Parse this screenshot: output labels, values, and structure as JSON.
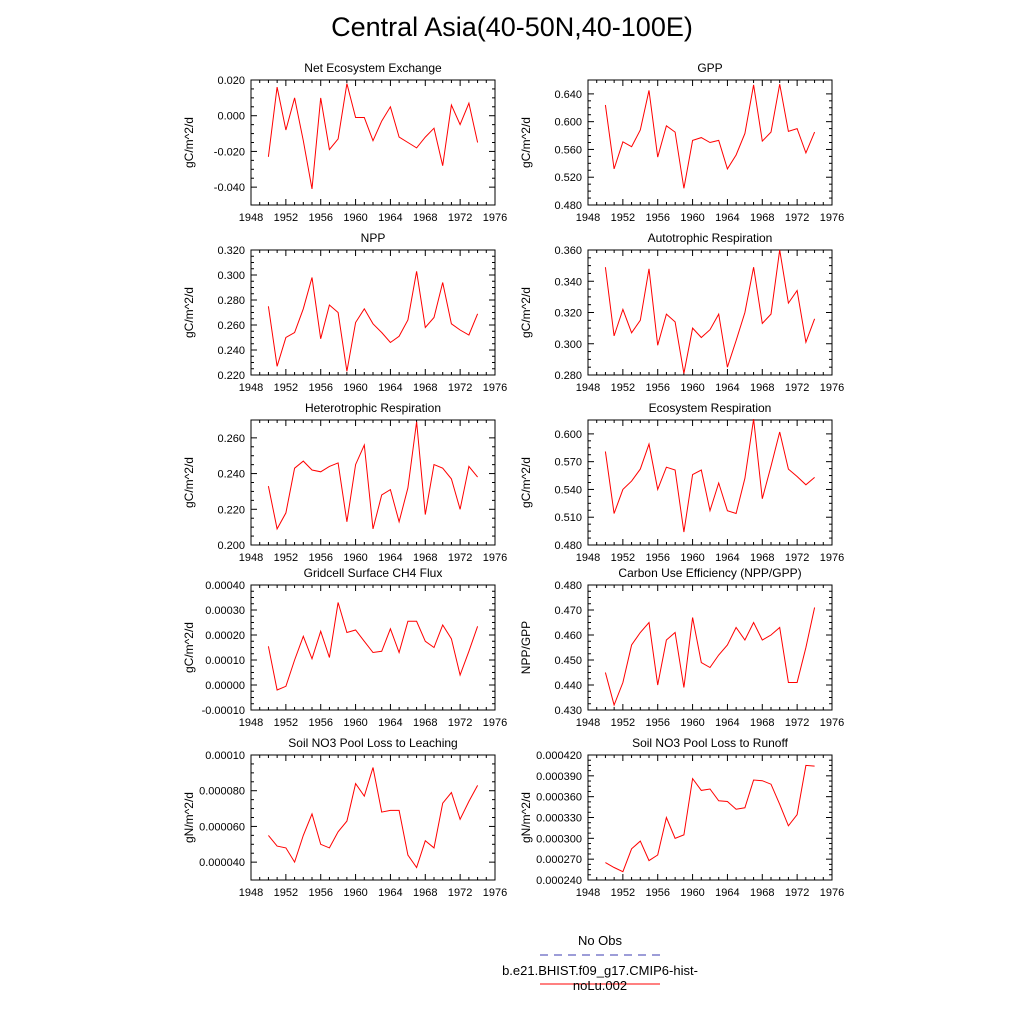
{
  "figure": {
    "title": "Central Asia(40-50N,40-100E)",
    "legend": {
      "obs_label": "No Obs",
      "obs_color": "#3b3bb0",
      "model_label": "b.e21.BHIST.f09_g17.CMIP6-hist-noLu.002",
      "model_color": "#ff0000"
    }
  },
  "chart_data": [
    {
      "type": "line",
      "title": "Net Ecosystem Exchange",
      "ylabel": "gC/m^2/d",
      "xlabel": "",
      "xlim": [
        1948,
        1976
      ],
      "xticks": [
        "1948",
        "1952",
        "1956",
        "1960",
        "1964",
        "1968",
        "1972",
        "1976"
      ],
      "ylim": [
        -0.05,
        0.02
      ],
      "yticks": [
        "-0.040",
        "-0.020",
        "0.000",
        "0.020"
      ],
      "grid": false,
      "series": [
        {
          "color": "#ff0000",
          "x": [
            1950,
            1951,
            1952,
            1953,
            1954,
            1955,
            1956,
            1957,
            1958,
            1959,
            1960,
            1961,
            1962,
            1963,
            1964,
            1965,
            1966,
            1967,
            1968,
            1969,
            1970,
            1971,
            1972,
            1973,
            1974
          ],
          "values": [
            -0.023,
            0.016,
            -0.008,
            0.01,
            -0.014,
            -0.041,
            0.01,
            -0.019,
            -0.013,
            0.018,
            -0.001,
            -0.001,
            -0.014,
            -0.003,
            0.005,
            -0.012,
            -0.015,
            -0.018,
            -0.012,
            -0.007,
            -0.028,
            0.006,
            -0.005,
            0.007,
            -0.015
          ]
        }
      ]
    },
    {
      "type": "line",
      "title": "GPP",
      "ylabel": "gC/m^2/d",
      "xlabel": "",
      "xlim": [
        1948,
        1976
      ],
      "xticks": [
        "1948",
        "1952",
        "1956",
        "1960",
        "1964",
        "1968",
        "1972",
        "1976"
      ],
      "ylim": [
        0.48,
        0.66
      ],
      "yticks": [
        "0.480",
        "0.520",
        "0.560",
        "0.600",
        "0.640"
      ],
      "grid": false,
      "series": [
        {
          "color": "#ff0000",
          "x": [
            1950,
            1951,
            1952,
            1953,
            1954,
            1955,
            1956,
            1957,
            1958,
            1959,
            1960,
            1961,
            1962,
            1963,
            1964,
            1965,
            1966,
            1967,
            1968,
            1969,
            1970,
            1971,
            1972,
            1973,
            1974
          ],
          "values": [
            0.624,
            0.532,
            0.571,
            0.564,
            0.588,
            0.645,
            0.549,
            0.594,
            0.585,
            0.504,
            0.573,
            0.577,
            0.57,
            0.573,
            0.532,
            0.552,
            0.583,
            0.653,
            0.572,
            0.585,
            0.654,
            0.586,
            0.59,
            0.555,
            0.585
          ]
        }
      ]
    },
    {
      "type": "line",
      "title": "NPP",
      "ylabel": "gC/m^2/d",
      "xlabel": "",
      "xlim": [
        1948,
        1976
      ],
      "xticks": [
        "1948",
        "1952",
        "1956",
        "1960",
        "1964",
        "1968",
        "1972",
        "1976"
      ],
      "ylim": [
        0.22,
        0.32
      ],
      "yticks": [
        "0.220",
        "0.240",
        "0.260",
        "0.280",
        "0.300",
        "0.320"
      ],
      "grid": false,
      "series": [
        {
          "color": "#ff0000",
          "x": [
            1950,
            1951,
            1952,
            1953,
            1954,
            1955,
            1956,
            1957,
            1958,
            1959,
            1960,
            1961,
            1962,
            1963,
            1964,
            1965,
            1966,
            1967,
            1968,
            1969,
            1970,
            1971,
            1972,
            1973,
            1974
          ],
          "values": [
            0.275,
            0.227,
            0.25,
            0.254,
            0.273,
            0.298,
            0.249,
            0.276,
            0.27,
            0.223,
            0.262,
            0.273,
            0.261,
            0.254,
            0.246,
            0.251,
            0.264,
            0.303,
            0.258,
            0.266,
            0.294,
            0.261,
            0.256,
            0.252,
            0.269
          ]
        }
      ]
    },
    {
      "type": "line",
      "title": "Autotrophic Respiration",
      "ylabel": "gC/m^2/d",
      "xlabel": "",
      "xlim": [
        1948,
        1976
      ],
      "xticks": [
        "1948",
        "1952",
        "1956",
        "1960",
        "1964",
        "1968",
        "1972",
        "1976"
      ],
      "ylim": [
        0.28,
        0.36
      ],
      "yticks": [
        "0.280",
        "0.300",
        "0.320",
        "0.340",
        "0.360"
      ],
      "grid": false,
      "series": [
        {
          "color": "#ff0000",
          "x": [
            1950,
            1951,
            1952,
            1953,
            1954,
            1955,
            1956,
            1957,
            1958,
            1959,
            1960,
            1961,
            1962,
            1963,
            1964,
            1965,
            1966,
            1967,
            1968,
            1969,
            1970,
            1971,
            1972,
            1973,
            1974
          ],
          "values": [
            0.349,
            0.305,
            0.322,
            0.307,
            0.315,
            0.348,
            0.299,
            0.319,
            0.314,
            0.281,
            0.31,
            0.304,
            0.309,
            0.319,
            0.285,
            0.302,
            0.32,
            0.349,
            0.313,
            0.319,
            0.36,
            0.326,
            0.334,
            0.301,
            0.316
          ]
        }
      ]
    },
    {
      "type": "line",
      "title": "Heterotrophic Respiration",
      "ylabel": "gC/m^2/d",
      "xlabel": "",
      "xlim": [
        1948,
        1976
      ],
      "xticks": [
        "1948",
        "1952",
        "1956",
        "1960",
        "1964",
        "1968",
        "1972",
        "1976"
      ],
      "ylim": [
        0.2,
        0.27
      ],
      "yticks": [
        "0.200",
        "0.220",
        "0.240",
        "0.260"
      ],
      "grid": false,
      "series": [
        {
          "color": "#ff0000",
          "x": [
            1950,
            1951,
            1952,
            1953,
            1954,
            1955,
            1956,
            1957,
            1958,
            1959,
            1960,
            1961,
            1962,
            1963,
            1964,
            1965,
            1966,
            1967,
            1968,
            1969,
            1970,
            1971,
            1972,
            1973,
            1974
          ],
          "values": [
            0.233,
            0.209,
            0.218,
            0.243,
            0.247,
            0.242,
            0.241,
            0.244,
            0.246,
            0.213,
            0.245,
            0.256,
            0.209,
            0.228,
            0.231,
            0.213,
            0.232,
            0.269,
            0.217,
            0.245,
            0.243,
            0.237,
            0.22,
            0.244,
            0.238
          ]
        }
      ]
    },
    {
      "type": "line",
      "title": "Ecosystem Respiration",
      "ylabel": "gC/m^2/d",
      "xlabel": "",
      "xlim": [
        1948,
        1976
      ],
      "xticks": [
        "1948",
        "1952",
        "1956",
        "1960",
        "1964",
        "1968",
        "1972",
        "1976"
      ],
      "ylim": [
        0.48,
        0.615
      ],
      "yticks": [
        "0.480",
        "0.510",
        "0.540",
        "0.570",
        "0.600"
      ],
      "grid": false,
      "series": [
        {
          "color": "#ff0000",
          "x": [
            1950,
            1951,
            1952,
            1953,
            1954,
            1955,
            1956,
            1957,
            1958,
            1959,
            1960,
            1961,
            1962,
            1963,
            1964,
            1965,
            1966,
            1967,
            1968,
            1969,
            1970,
            1971,
            1972,
            1973,
            1974
          ],
          "values": [
            0.581,
            0.514,
            0.54,
            0.549,
            0.562,
            0.589,
            0.54,
            0.564,
            0.561,
            0.494,
            0.556,
            0.561,
            0.517,
            0.547,
            0.517,
            0.514,
            0.552,
            0.616,
            0.53,
            0.565,
            0.602,
            0.562,
            0.554,
            0.545,
            0.553
          ]
        }
      ]
    },
    {
      "type": "line",
      "title": "Gridcell Surface CH4 Flux",
      "ylabel": "gC/m^2/d",
      "xlabel": "",
      "xlim": [
        1948,
        1976
      ],
      "xticks": [
        "1948",
        "1952",
        "1956",
        "1960",
        "1964",
        "1968",
        "1972",
        "1976"
      ],
      "ylim": [
        -0.0001,
        0.0004
      ],
      "yticks": [
        "-0.00010",
        "0.00000",
        "0.00010",
        "0.00020",
        "0.00030",
        "0.00040"
      ],
      "grid": false,
      "series": [
        {
          "color": "#ff0000",
          "x": [
            1950,
            1951,
            1952,
            1953,
            1954,
            1955,
            1956,
            1957,
            1958,
            1959,
            1960,
            1961,
            1962,
            1963,
            1964,
            1965,
            1966,
            1967,
            1968,
            1969,
            1970,
            1971,
            1972,
            1973,
            1974
          ],
          "values": [
            0.000155,
            -2e-05,
            -5e-06,
            0.0001,
            0.000195,
            0.000105,
            0.000215,
            0.00011,
            0.00033,
            0.00021,
            0.00022,
            0.000175,
            0.00013,
            0.000135,
            0.000225,
            0.00013,
            0.000255,
            0.000255,
            0.000175,
            0.00015,
            0.00024,
            0.000185,
            4e-05,
            0.000135,
            0.000235
          ]
        }
      ]
    },
    {
      "type": "line",
      "title": "Carbon Use Efficiency (NPP/GPP)",
      "ylabel": "NPP/GPP",
      "xlabel": "",
      "xlim": [
        1948,
        1976
      ],
      "xticks": [
        "1948",
        "1952",
        "1956",
        "1960",
        "1964",
        "1968",
        "1972",
        "1976"
      ],
      "ylim": [
        0.43,
        0.48
      ],
      "yticks": [
        "0.430",
        "0.440",
        "0.450",
        "0.460",
        "0.470",
        "0.480"
      ],
      "grid": false,
      "series": [
        {
          "color": "#ff0000",
          "x": [
            1950,
            1951,
            1952,
            1953,
            1954,
            1955,
            1956,
            1957,
            1958,
            1959,
            1960,
            1961,
            1962,
            1963,
            1964,
            1965,
            1966,
            1967,
            1968,
            1969,
            1970,
            1971,
            1972,
            1973,
            1974
          ],
          "values": [
            0.445,
            0.432,
            0.441,
            0.456,
            0.461,
            0.465,
            0.44,
            0.458,
            0.461,
            0.439,
            0.467,
            0.449,
            0.447,
            0.452,
            0.456,
            0.463,
            0.458,
            0.465,
            0.458,
            0.46,
            0.463,
            0.441,
            0.441,
            0.455,
            0.471
          ]
        }
      ]
    },
    {
      "type": "line",
      "title": "Soil NO3 Pool Loss to Leaching",
      "ylabel": "gN/m^2/d",
      "xlabel": "",
      "xlim": [
        1948,
        1976
      ],
      "xticks": [
        "1948",
        "1952",
        "1956",
        "1960",
        "1964",
        "1968",
        "1972",
        "1976"
      ],
      "ylim": [
        3e-05,
        0.0001
      ],
      "yticks": [
        "0.000040",
        "0.000060",
        "0.000080",
        "0.00010"
      ],
      "grid": false,
      "series": [
        {
          "color": "#ff0000",
          "x": [
            1950,
            1951,
            1952,
            1953,
            1954,
            1955,
            1956,
            1957,
            1958,
            1959,
            1960,
            1961,
            1962,
            1963,
            1964,
            1965,
            1966,
            1967,
            1968,
            1969,
            1970,
            1971,
            1972,
            1973,
            1974
          ],
          "values": [
            5.5e-05,
            4.9e-05,
            4.8e-05,
            4e-05,
            5.5e-05,
            6.7e-05,
            5e-05,
            4.8e-05,
            5.7e-05,
            6.3e-05,
            8.4e-05,
            7.7e-05,
            9.3e-05,
            6.8e-05,
            6.9e-05,
            6.9e-05,
            4.4e-05,
            3.7e-05,
            5.2e-05,
            4.8e-05,
            7.3e-05,
            7.9e-05,
            6.4e-05,
            7.4e-05,
            8.3e-05
          ]
        }
      ]
    },
    {
      "type": "line",
      "title": "Soil NO3 Pool Loss to Runoff",
      "ylabel": "gN/m^2/d",
      "xlabel": "",
      "xlim": [
        1948,
        1976
      ],
      "xticks": [
        "1948",
        "1952",
        "1956",
        "1960",
        "1964",
        "1968",
        "1972",
        "1976"
      ],
      "ylim": [
        0.00024,
        0.00042
      ],
      "yticks": [
        "0.000240",
        "0.000270",
        "0.000300",
        "0.000330",
        "0.000360",
        "0.000390",
        "0.000420"
      ],
      "grid": false,
      "series": [
        {
          "color": "#ff0000",
          "x": [
            1950,
            1951,
            1952,
            1953,
            1954,
            1955,
            1956,
            1957,
            1958,
            1959,
            1960,
            1961,
            1962,
            1963,
            1964,
            1965,
            1966,
            1967,
            1968,
            1969,
            1970,
            1971,
            1972,
            1973,
            1974
          ],
          "values": [
            0.000265,
            0.000258,
            0.000252,
            0.000285,
            0.000296,
            0.000268,
            0.000276,
            0.00033,
            0.0003,
            0.000305,
            0.000386,
            0.000369,
            0.000371,
            0.000354,
            0.000353,
            0.000342,
            0.000344,
            0.000384,
            0.000383,
            0.000378,
            0.000349,
            0.000318,
            0.000334,
            0.000405,
            0.000404
          ]
        }
      ]
    }
  ]
}
